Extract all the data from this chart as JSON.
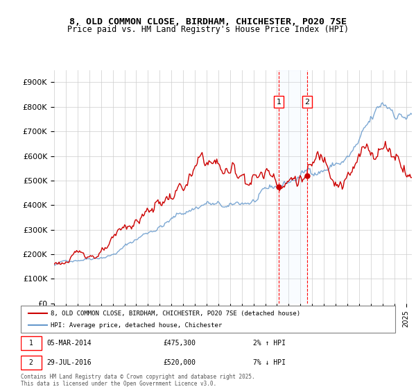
{
  "title": "8, OLD COMMON CLOSE, BIRDHAM, CHICHESTER, PO20 7SE",
  "subtitle": "Price paid vs. HM Land Registry's House Price Index (HPI)",
  "ylabel_ticks": [
    "£0",
    "£100K",
    "£200K",
    "£300K",
    "£400K",
    "£500K",
    "£600K",
    "£700K",
    "£800K",
    "£900K"
  ],
  "ytick_values": [
    0,
    100000,
    200000,
    300000,
    400000,
    500000,
    600000,
    700000,
    800000,
    900000
  ],
  "ylim": [
    0,
    950000
  ],
  "xlim_start": 1995.0,
  "xlim_end": 2025.5,
  "transaction1_date": 2014.17,
  "transaction1_price": 475300,
  "transaction2_date": 2016.58,
  "transaction2_price": 520000,
  "transaction1_label": "1",
  "transaction2_label": "2",
  "legend_line1": "8, OLD COMMON CLOSE, BIRDHAM, CHICHESTER, PO20 7SE (detached house)",
  "legend_line2": "HPI: Average price, detached house, Chichester",
  "annotation1": "1    05-MAR-2014         £475,300          2% ↑ HPI",
  "annotation2": "2    29-JUL-2016          £520,000          7% ↓ HPI",
  "footer": "Contains HM Land Registry data © Crown copyright and database right 2025.\nThis data is licensed under the Open Government Licence v3.0.",
  "line_color_red": "#cc0000",
  "line_color_blue": "#6699cc",
  "background_color": "#ffffff",
  "grid_color": "#cccccc",
  "shading_color": "#ddeeff"
}
